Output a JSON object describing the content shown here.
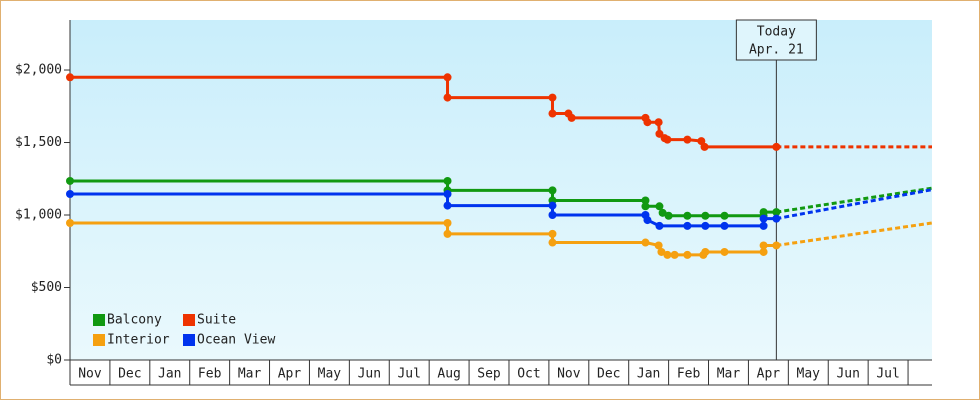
{
  "chart_data": {
    "type": "line",
    "xlim": [
      0,
      21.6
    ],
    "xticks": [
      {
        "value": 0,
        "label": "Nov"
      },
      {
        "value": 1,
        "label": "Dec"
      },
      {
        "value": 2,
        "label": "Jan"
      },
      {
        "value": 3,
        "label": "Feb"
      },
      {
        "value": 4,
        "label": "Mar"
      },
      {
        "value": 5,
        "label": "Apr"
      },
      {
        "value": 6,
        "label": "May"
      },
      {
        "value": 7,
        "label": "Jun"
      },
      {
        "value": 8,
        "label": "Jul"
      },
      {
        "value": 9,
        "label": "Aug"
      },
      {
        "value": 10,
        "label": "Sep"
      },
      {
        "value": 11,
        "label": "Oct"
      },
      {
        "value": 12,
        "label": "Nov"
      },
      {
        "value": 13,
        "label": "Dec"
      },
      {
        "value": 14,
        "label": "Jan"
      },
      {
        "value": 15,
        "label": "Feb"
      },
      {
        "value": 16,
        "label": "Mar"
      },
      {
        "value": 17,
        "label": "Apr"
      },
      {
        "value": 18,
        "label": "May"
      },
      {
        "value": 19,
        "label": "Jun"
      },
      {
        "value": 20,
        "label": "Jul"
      }
    ],
    "ylim": [
      0,
      2345
    ],
    "yticks": [
      {
        "value": 0,
        "label": "$0"
      },
      {
        "value": 500,
        "label": "$500"
      },
      {
        "value": 1000,
        "label": "$1,000"
      },
      {
        "value": 1500,
        "label": "$1,500"
      },
      {
        "value": 2000,
        "label": "$2,000"
      }
    ],
    "annotation": {
      "x": 17.7,
      "lines": [
        "Today",
        "Apr. 21"
      ]
    },
    "series": [
      {
        "name": "Balcony",
        "color": "#119911",
        "x": [
          0,
          9.46,
          9.46,
          12.09,
          12.09,
          14.42,
          14.42,
          14.77,
          14.85,
          15.0,
          15.47,
          15.92,
          16.4,
          17.38,
          17.38,
          17.7
        ],
        "values": [
          1235,
          1235,
          1170,
          1170,
          1100,
          1100,
          1060,
          1060,
          1015,
          995,
          995,
          995,
          995,
          995,
          1020,
          1020
        ],
        "forecast_x": [
          17.7,
          21.6
        ],
        "forecast_values": [
          1020,
          1185
        ]
      },
      {
        "name": "Suite",
        "color": "#ee3300",
        "x": [
          0,
          9.46,
          9.46,
          12.09,
          12.09,
          12.49,
          12.57,
          14.42,
          14.47,
          14.75,
          14.77,
          14.9,
          14.97,
          15.47,
          15.82,
          15.9,
          17.7
        ],
        "values": [
          1950,
          1950,
          1810,
          1810,
          1700,
          1700,
          1670,
          1670,
          1640,
          1640,
          1560,
          1530,
          1520,
          1520,
          1510,
          1470,
          1470
        ],
        "forecast_x": [
          17.7,
          21.6
        ],
        "forecast_values": [
          1470,
          1470
        ]
      },
      {
        "name": "Interior",
        "color": "#f5a010",
        "x": [
          0,
          9.46,
          9.46,
          12.09,
          12.09,
          14.42,
          14.75,
          14.82,
          14.97,
          15.15,
          15.47,
          15.87,
          15.92,
          16.4,
          17.38,
          17.38,
          17.7
        ],
        "values": [
          945,
          945,
          870,
          870,
          810,
          810,
          790,
          745,
          725,
          725,
          725,
          725,
          745,
          745,
          745,
          790,
          790
        ],
        "forecast_x": [
          17.7,
          21.6
        ],
        "forecast_values": [
          790,
          945
        ]
      },
      {
        "name": "Ocean View",
        "color": "#0033ee",
        "x": [
          0,
          9.46,
          9.46,
          12.09,
          12.09,
          14.42,
          14.47,
          14.77,
          15.47,
          15.92,
          16.4,
          17.38,
          17.38,
          17.7
        ],
        "values": [
          1145,
          1145,
          1065,
          1065,
          1000,
          1000,
          965,
          925,
          925,
          925,
          925,
          925,
          975,
          975
        ],
        "forecast_x": [
          17.7,
          21.6
        ],
        "forecast_values": [
          975,
          1175
        ]
      }
    ]
  }
}
